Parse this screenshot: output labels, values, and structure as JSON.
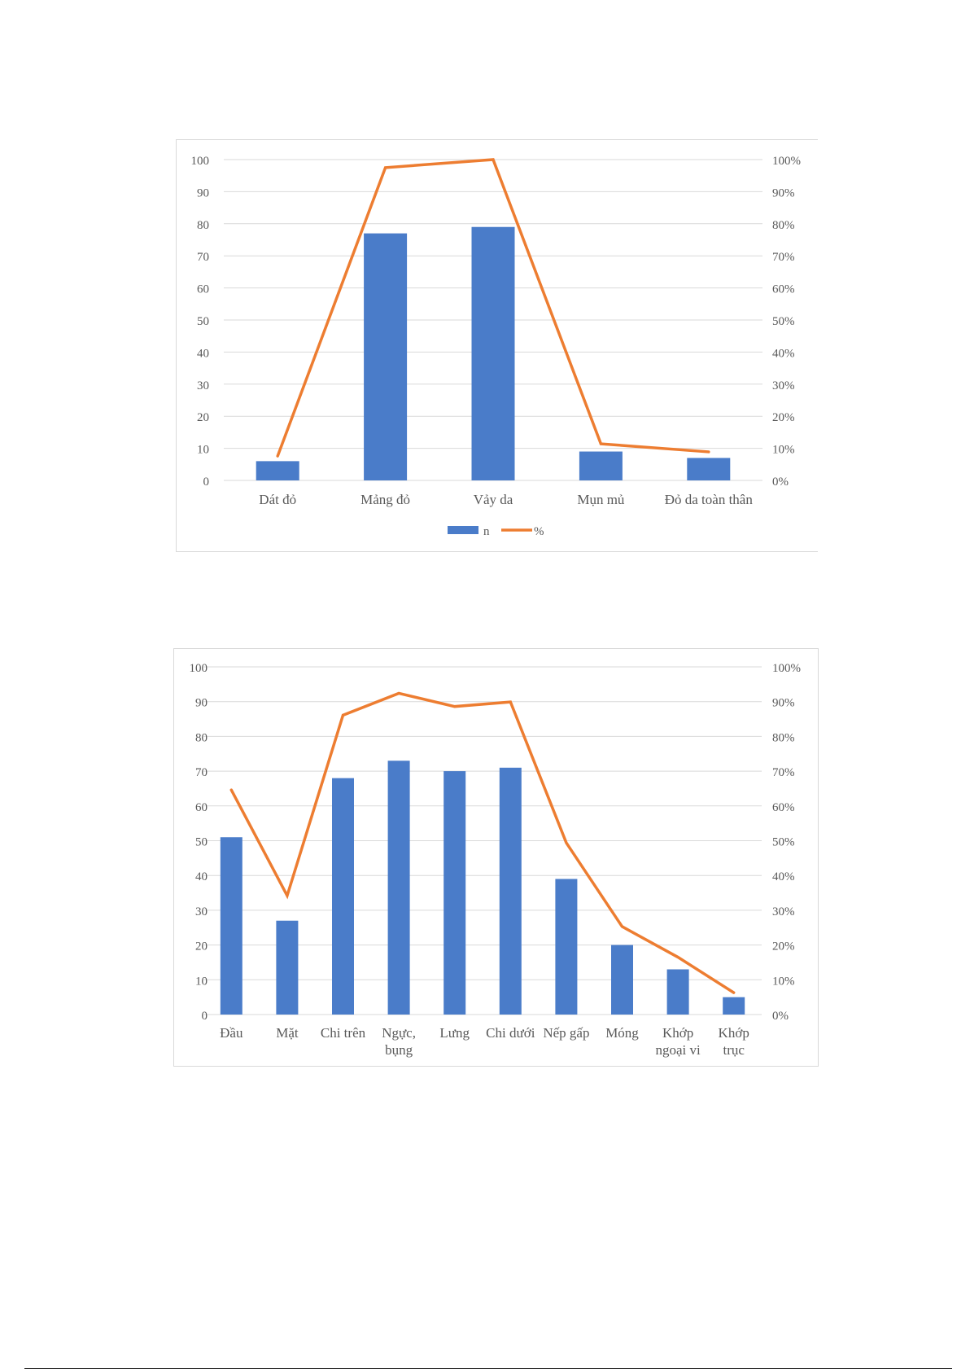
{
  "charts": [
    {
      "type": "bar+line",
      "categories": [
        "Dát đỏ",
        "Mảng đỏ",
        "Vảy da",
        "Mụn mủ",
        "Đỏ da toàn thân"
      ],
      "series": [
        {
          "name": "n",
          "type": "bar",
          "color": "#4a7cc9",
          "values": [
            6,
            77,
            79,
            9,
            7
          ]
        },
        {
          "name": "%",
          "type": "line",
          "axis": "right",
          "color": "#ed7d31",
          "values": [
            7.6,
            97.5,
            100,
            11.4,
            8.9
          ]
        }
      ],
      "y_left": {
        "min": 0,
        "max": 100,
        "step": 10,
        "ticks": [
          "0",
          "10",
          "20",
          "30",
          "40",
          "50",
          "60",
          "70",
          "80",
          "90",
          "100"
        ]
      },
      "y_right": {
        "min": 0,
        "max": 100,
        "step": 10,
        "ticks": [
          "0%",
          "10%",
          "20%",
          "30%",
          "40%",
          "50%",
          "60%",
          "70%",
          "80%",
          "90%",
          "100%"
        ]
      },
      "legend": "bottom",
      "grid": true
    },
    {
      "type": "bar+line",
      "categories": [
        [
          "Đầu"
        ],
        [
          "Mặt"
        ],
        [
          "Chi trên"
        ],
        [
          "Ngực,",
          "bụng"
        ],
        [
          "Lưng"
        ],
        [
          "Chi dưới"
        ],
        [
          "Nếp gấp"
        ],
        [
          "Móng"
        ],
        [
          "Khớp",
          "ngoại vi"
        ],
        [
          "Khớp",
          "trục"
        ]
      ],
      "series": [
        {
          "type": "bar",
          "color": "#4a7cc9",
          "values": [
            51,
            27,
            68,
            73,
            70,
            71,
            39,
            20,
            13,
            5
          ]
        },
        {
          "type": "line",
          "axis": "right",
          "color": "#ed7d31",
          "values": [
            64.6,
            34.2,
            86.1,
            92.4,
            88.6,
            89.9,
            49.4,
            25.3,
            16.5,
            6.3
          ]
        }
      ],
      "y_left": {
        "min": 0,
        "max": 100,
        "step": 10,
        "ticks": [
          "0",
          "10",
          "20",
          "30",
          "40",
          "50",
          "60",
          "70",
          "80",
          "90",
          "100"
        ]
      },
      "y_right": {
        "min": 0,
        "max": 100,
        "step": 10,
        "ticks": [
          "0%",
          "10%",
          "20%",
          "30%",
          "40%",
          "50%",
          "60%",
          "70%",
          "80%",
          "90%",
          "100%"
        ]
      },
      "legend": "none",
      "grid": true
    }
  ]
}
